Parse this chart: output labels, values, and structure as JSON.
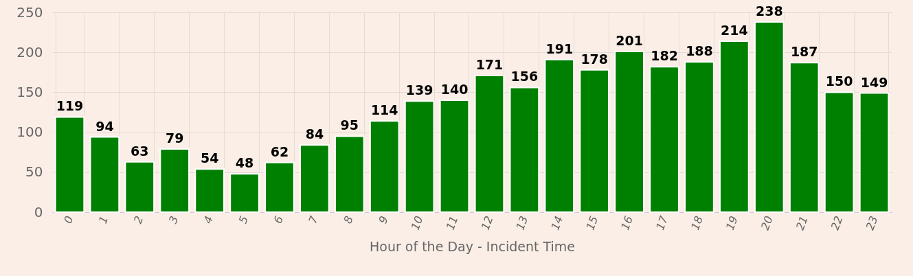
{
  "chart_data": {
    "type": "bar",
    "xlabel": "Hour of the Day - Incident Time",
    "categories": [
      "0",
      "1",
      "2",
      "3",
      "4",
      "5",
      "6",
      "7",
      "8",
      "9",
      "10",
      "11",
      "12",
      "13",
      "14",
      "15",
      "16",
      "17",
      "18",
      "19",
      "20",
      "21",
      "22",
      "23"
    ],
    "values": [
      119,
      94,
      63,
      79,
      54,
      48,
      62,
      84,
      95,
      114,
      139,
      140,
      171,
      156,
      191,
      178,
      201,
      182,
      188,
      214,
      238,
      187,
      150,
      149
    ],
    "color": "#008000",
    "ylim": [
      0,
      250
    ],
    "yticks": [
      0,
      50,
      100,
      150,
      200,
      250
    ],
    "grid": true,
    "data_labels": true
  }
}
